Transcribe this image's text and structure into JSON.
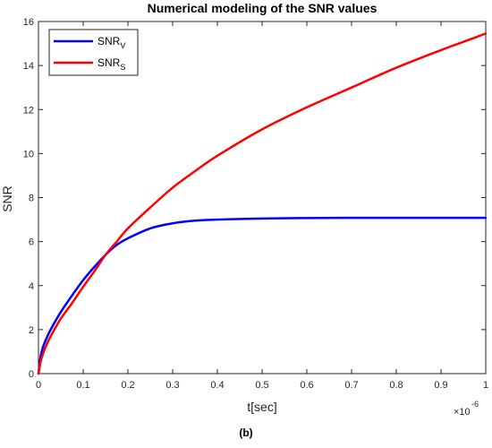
{
  "chart_data": {
    "type": "line",
    "title": "Numerical modeling of the SNR values",
    "xlabel": "t[sec]",
    "ylabel": "SNR",
    "x_multiplier": "×10",
    "x_multiplier_exponent": "-6",
    "caption": "(b)",
    "xlim": [
      0,
      1
    ],
    "ylim": [
      0,
      16
    ],
    "x_ticks": [
      0,
      0.1,
      0.2,
      0.3,
      0.4,
      0.5,
      0.6,
      0.7,
      0.8,
      0.9,
      1
    ],
    "x_tick_labels": [
      "0",
      "0.1",
      "0.2",
      "0.3",
      "0.4",
      "0.5",
      "0.6",
      "0.7",
      "0.8",
      "0.9",
      "1"
    ],
    "y_ticks": [
      0,
      2,
      4,
      6,
      8,
      10,
      12,
      14,
      16
    ],
    "y_tick_labels": [
      "0",
      "2",
      "4",
      "6",
      "8",
      "10",
      "12",
      "14",
      "16"
    ],
    "grid": false,
    "legend_position": "top-left",
    "series": [
      {
        "name": "SNR",
        "subscript": "V",
        "color": "#0000ff",
        "x": [
          0,
          0.005,
          0.01,
          0.02,
          0.03,
          0.05,
          0.075,
          0.1,
          0.125,
          0.15,
          0.175,
          0.2,
          0.25,
          0.3,
          0.35,
          0.4,
          0.5,
          0.6,
          0.7,
          0.8,
          0.9,
          1.0
        ],
        "y": [
          0,
          0.8,
          1.2,
          1.7,
          2.1,
          2.8,
          3.55,
          4.25,
          4.85,
          5.4,
          5.85,
          6.15,
          6.6,
          6.83,
          6.95,
          7.0,
          7.05,
          7.07,
          7.08,
          7.08,
          7.08,
          7.08
        ]
      },
      {
        "name": "SNR",
        "subscript": "S",
        "color": "#ff0000",
        "x": [
          0,
          0.005,
          0.01,
          0.02,
          0.03,
          0.05,
          0.075,
          0.1,
          0.125,
          0.15,
          0.175,
          0.2,
          0.25,
          0.3,
          0.35,
          0.4,
          0.5,
          0.6,
          0.7,
          0.8,
          0.9,
          1.0
        ],
        "y": [
          0,
          0.55,
          0.9,
          1.4,
          1.8,
          2.5,
          3.2,
          3.95,
          4.65,
          5.4,
          6.0,
          6.6,
          7.55,
          8.45,
          9.2,
          9.9,
          11.1,
          12.1,
          13.0,
          13.9,
          14.7,
          15.45
        ]
      }
    ]
  }
}
